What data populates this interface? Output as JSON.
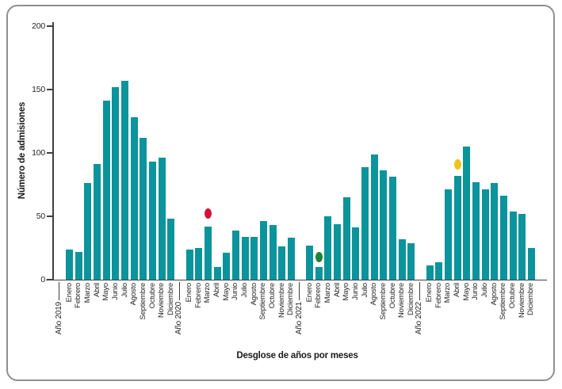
{
  "figure": {
    "y_axis_title": "Número de admisiones",
    "x_axis_title": "Desglose de años por meses"
  },
  "colors": {
    "bar": "#0b949b",
    "axis": "#404040",
    "border": "#8f8f8f",
    "marker_red": "#d5103a",
    "marker_green": "#1e8238",
    "marker_yellow": "#eec319"
  },
  "chart_data": {
    "type": "bar",
    "title": "",
    "ylabel": "Número de admisiones",
    "xlabel": "Desglose de años por meses",
    "ylim": [
      0,
      200
    ],
    "yticks": [
      0,
      50,
      100,
      150,
      200
    ],
    "grid": false,
    "legend": "none",
    "categories": [
      "Enero",
      "Febrero",
      "Marzo",
      "Abril",
      "Mayo",
      "Junio",
      "Julio",
      "Agosto",
      "Septiembre",
      "Octubre",
      "Noviembre",
      "Diciembre"
    ],
    "series": [
      {
        "name": "Año 2019",
        "values": [
          24,
          22,
          76,
          91,
          141,
          152,
          157,
          128,
          112,
          93,
          96,
          48
        ]
      },
      {
        "name": "Año 2020",
        "values": [
          24,
          25,
          42,
          10,
          21,
          39,
          34,
          34,
          46,
          43,
          26,
          33
        ]
      },
      {
        "name": "Año 2021",
        "values": [
          27,
          10,
          50,
          44,
          65,
          41,
          89,
          99,
          86,
          81,
          32,
          29
        ]
      },
      {
        "name": "Año 2022",
        "values": [
          11,
          14,
          71,
          82,
          105,
          77,
          71,
          76,
          66,
          54,
          52,
          25
        ]
      }
    ],
    "markers": [
      {
        "name": "red-marker",
        "series": "Año 2020",
        "category": "Marzo",
        "value": 52,
        "color": "#d5103a"
      },
      {
        "name": "green-marker",
        "series": "Año 2021",
        "category": "Febrero",
        "value": 18,
        "color": "#1e8238"
      },
      {
        "name": "yellow-marker",
        "series": "Año 2022",
        "category": "Abril",
        "value": 91,
        "color": "#eec319"
      }
    ]
  }
}
